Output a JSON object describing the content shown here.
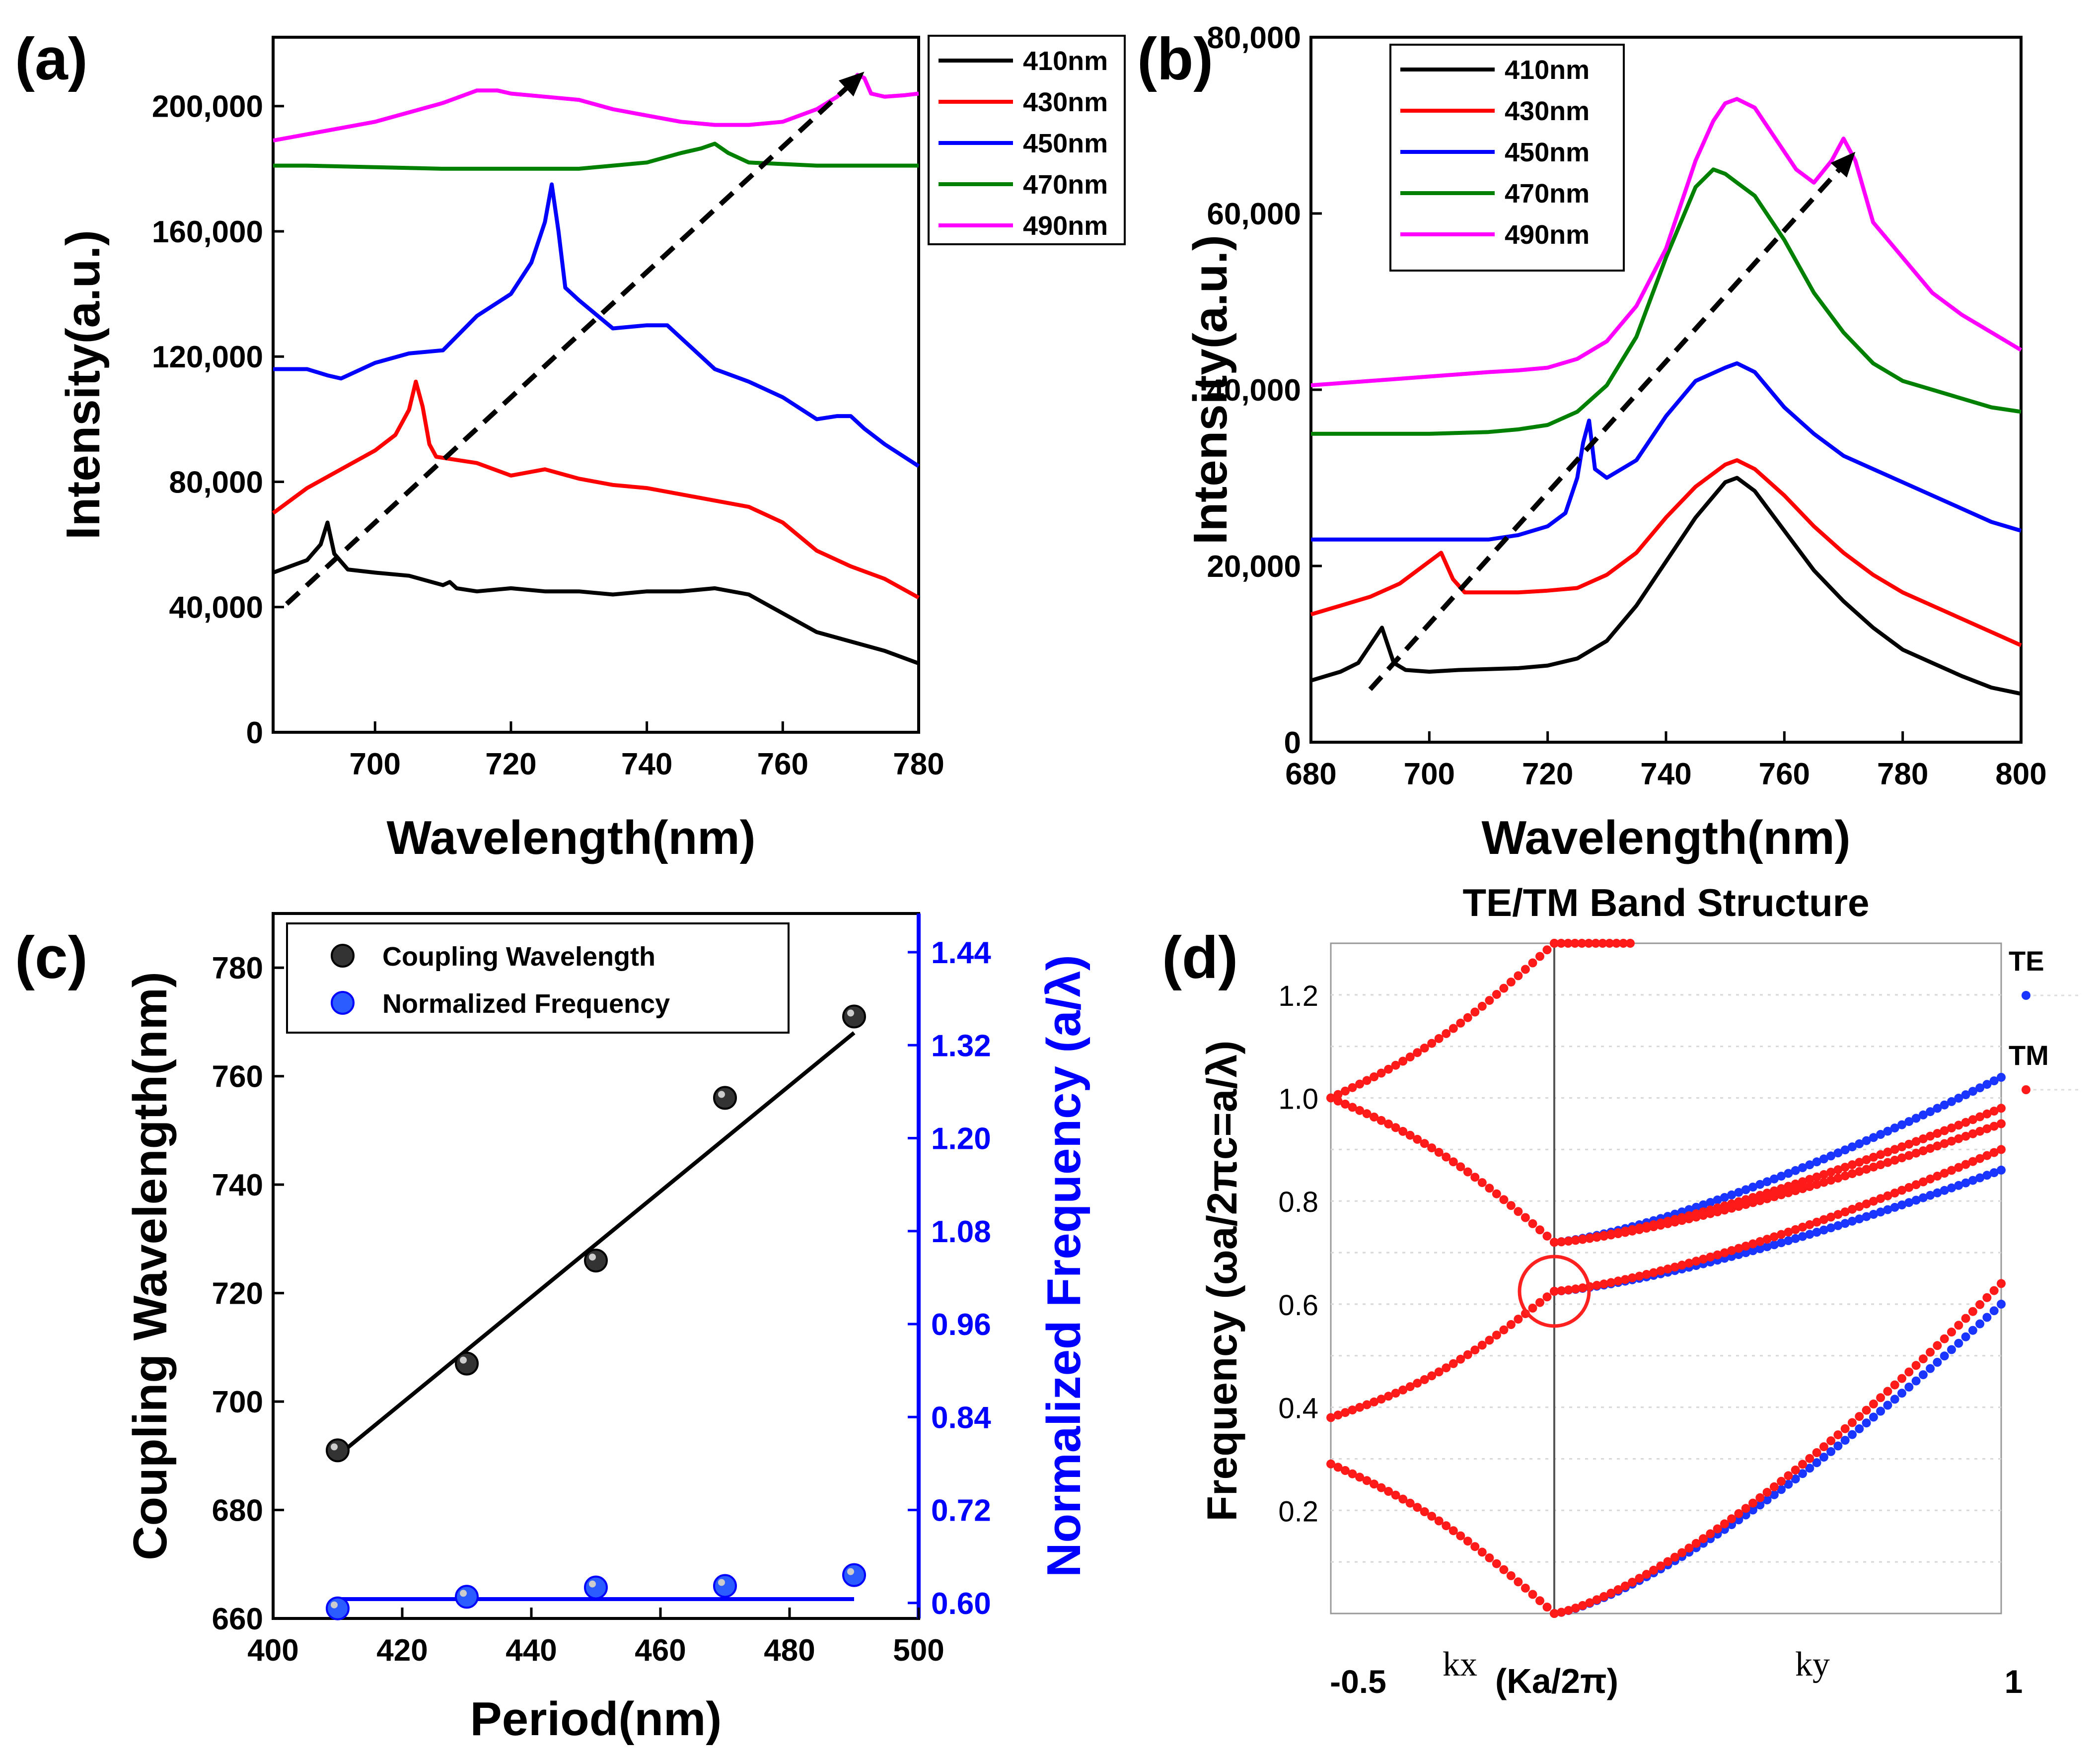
{
  "chart_data": [
    {
      "panel": "(a)",
      "type": "line",
      "title": "",
      "xlabel": "Wavelength(nm)",
      "ylabel": "Intensity(a.u.)",
      "xlim": [
        685,
        780
      ],
      "ylim": [
        0,
        222000
      ],
      "xticks": [
        700,
        720,
        740,
        760,
        780
      ],
      "xtick_labels": [
        "700",
        "720",
        "740",
        "760",
        "780"
      ],
      "yticks": [
        0,
        40000,
        80000,
        120000,
        160000,
        200000
      ],
      "ytick_labels": [
        "0",
        "40,000",
        "80,000",
        "120,000",
        "160,000",
        "200,000"
      ],
      "legend": "top-right",
      "arrow": {
        "from": [
          687,
          41000
        ],
        "to": [
          772,
          211000
        ]
      },
      "series": [
        {
          "name": "410nm",
          "color": "#000000",
          "x": [
            685,
            690,
            692,
            693,
            694,
            696,
            700,
            705,
            710,
            711,
            712,
            715,
            720,
            725,
            730,
            735,
            740,
            745,
            750,
            755,
            760,
            765,
            770,
            775,
            780
          ],
          "y": [
            51000,
            55000,
            60000,
            67000,
            57000,
            52000,
            51000,
            50000,
            47000,
            48000,
            46000,
            45000,
            46000,
            45000,
            45000,
            44000,
            45000,
            45000,
            46000,
            44000,
            38000,
            32000,
            29000,
            26000,
            22000
          ]
        },
        {
          "name": "430nm",
          "color": "#ff0000",
          "x": [
            685,
            690,
            695,
            700,
            703,
            705,
            706,
            707,
            708,
            709,
            712,
            715,
            720,
            725,
            730,
            735,
            740,
            745,
            750,
            755,
            760,
            765,
            770,
            775,
            780
          ],
          "y": [
            70000,
            78000,
            84000,
            90000,
            95000,
            103000,
            112000,
            104000,
            92000,
            88000,
            87000,
            86000,
            82000,
            84000,
            81000,
            79000,
            78000,
            76000,
            74000,
            72000,
            67000,
            58000,
            53000,
            49000,
            43000
          ]
        },
        {
          "name": "450nm",
          "color": "#0000ff",
          "x": [
            685,
            690,
            693,
            695,
            700,
            705,
            710,
            715,
            720,
            723,
            725,
            726,
            727,
            728,
            730,
            735,
            740,
            743,
            745,
            750,
            755,
            760,
            765,
            768,
            770,
            772,
            775,
            780
          ],
          "y": [
            116000,
            116000,
            114000,
            113000,
            118000,
            121000,
            122000,
            133000,
            140000,
            150000,
            163000,
            175000,
            160000,
            142000,
            138000,
            129000,
            130000,
            130000,
            126000,
            116000,
            112000,
            107000,
            100000,
            101000,
            101000,
            97000,
            92000,
            85000
          ]
        },
        {
          "name": "470nm",
          "color": "#008000",
          "x": [
            685,
            690,
            700,
            710,
            720,
            730,
            735,
            740,
            745,
            748,
            750,
            752,
            755,
            760,
            765,
            770,
            775,
            780
          ],
          "y": [
            181000,
            181000,
            180500,
            180000,
            180000,
            180000,
            181000,
            182000,
            185000,
            186500,
            188000,
            185000,
            182000,
            181500,
            181000,
            181000,
            181000,
            181000
          ]
        },
        {
          "name": "490nm",
          "color": "#ff00ff",
          "x": [
            685,
            690,
            695,
            700,
            705,
            710,
            715,
            718,
            720,
            725,
            730,
            735,
            740,
            745,
            750,
            755,
            760,
            765,
            768,
            770,
            771,
            772,
            773,
            775,
            778,
            780
          ],
          "y": [
            189000,
            191000,
            193000,
            195000,
            198000,
            201000,
            205000,
            205000,
            204000,
            203000,
            202000,
            199000,
            197000,
            195000,
            194000,
            194000,
            195000,
            199000,
            203000,
            207000,
            210000,
            209000,
            204000,
            203000,
            203500,
            204000
          ]
        }
      ]
    },
    {
      "panel": "(b)",
      "type": "line",
      "title": "",
      "xlabel": "Wavelength(nm)",
      "ylabel": "Intensity(a.u.)",
      "xlim": [
        680,
        800
      ],
      "ylim": [
        0,
        80000
      ],
      "xticks": [
        680,
        700,
        720,
        740,
        760,
        780,
        800
      ],
      "xtick_labels": [
        "680",
        "700",
        "720",
        "740",
        "760",
        "780",
        "800"
      ],
      "yticks": [
        0,
        20000,
        40000,
        60000,
        80000
      ],
      "ytick_labels": [
        "0",
        "20,000",
        "40,000",
        "60,000",
        "80,000"
      ],
      "legend": "top-left",
      "arrow": {
        "from": [
          690,
          6000
        ],
        "to": [
          772,
          67000
        ]
      },
      "series": [
        {
          "name": "410nm",
          "color": "#000000",
          "x": [
            680,
            685,
            688,
            690,
            692,
            693,
            694,
            696,
            700,
            705,
            710,
            715,
            720,
            725,
            730,
            735,
            740,
            745,
            750,
            752,
            755,
            760,
            765,
            770,
            775,
            780,
            785,
            790,
            795,
            800
          ],
          "y": [
            7000,
            8000,
            9000,
            11000,
            13000,
            11000,
            9000,
            8200,
            8000,
            8200,
            8300,
            8400,
            8700,
            9500,
            11500,
            15500,
            20500,
            25500,
            29500,
            30000,
            28500,
            24000,
            19500,
            16000,
            13000,
            10500,
            9000,
            7500,
            6200,
            5500
          ]
        },
        {
          "name": "430nm",
          "color": "#ff0000",
          "x": [
            680,
            685,
            690,
            695,
            700,
            702,
            704,
            706,
            710,
            715,
            720,
            725,
            730,
            735,
            740,
            745,
            750,
            752,
            755,
            760,
            765,
            770,
            775,
            780,
            785,
            790,
            795,
            800
          ],
          "y": [
            14500,
            15500,
            16500,
            18000,
            20500,
            21500,
            18500,
            17000,
            17000,
            17000,
            17200,
            17500,
            19000,
            21500,
            25500,
            29000,
            31500,
            32000,
            31000,
            28000,
            24500,
            21500,
            19000,
            17000,
            15500,
            14000,
            12500,
            11000
          ]
        },
        {
          "name": "450nm",
          "color": "#0000ff",
          "x": [
            680,
            685,
            690,
            695,
            700,
            705,
            710,
            715,
            720,
            723,
            725,
            726,
            727,
            728,
            730,
            735,
            740,
            745,
            750,
            752,
            755,
            760,
            765,
            770,
            775,
            780,
            785,
            790,
            795,
            800
          ],
          "y": [
            23000,
            23000,
            23000,
            23000,
            23000,
            23000,
            23000,
            23500,
            24500,
            26000,
            30000,
            34000,
            36500,
            31000,
            30000,
            32000,
            37000,
            41000,
            42500,
            43000,
            42000,
            38000,
            35000,
            32500,
            31000,
            29500,
            28000,
            26500,
            25000,
            24000
          ]
        },
        {
          "name": "470nm",
          "color": "#008000",
          "x": [
            680,
            690,
            700,
            710,
            715,
            720,
            725,
            730,
            735,
            740,
            745,
            748,
            750,
            752,
            755,
            760,
            765,
            770,
            775,
            780,
            785,
            790,
            795,
            800
          ],
          "y": [
            35000,
            35000,
            35000,
            35200,
            35500,
            36000,
            37500,
            40500,
            46000,
            55000,
            63000,
            65000,
            64500,
            63500,
            62000,
            57000,
            51000,
            46500,
            43000,
            41000,
            40000,
            39000,
            38000,
            37500
          ]
        },
        {
          "name": "490nm",
          "color": "#ff00ff",
          "x": [
            680,
            690,
            700,
            710,
            715,
            720,
            725,
            730,
            735,
            740,
            745,
            748,
            750,
            752,
            755,
            758,
            762,
            765,
            768,
            770,
            772,
            775,
            780,
            785,
            790,
            795,
            800
          ],
          "y": [
            40500,
            41000,
            41500,
            42000,
            42200,
            42500,
            43500,
            45500,
            49500,
            56000,
            66000,
            70500,
            72500,
            73000,
            72000,
            69000,
            65000,
            63500,
            66000,
            68500,
            66000,
            59000,
            55000,
            51000,
            48500,
            46500,
            44500
          ]
        }
      ]
    },
    {
      "panel": "(c)",
      "type": "scatter",
      "title": "",
      "xlabel": "Period(nm)",
      "ylabel": "Coupling Wavelength(nm)",
      "y2label": "Normalized Frequency (a/λ)",
      "xlim": [
        400,
        500
      ],
      "ylim": [
        660,
        790
      ],
      "y2lim": [
        0.58,
        1.49
      ],
      "xticks": [
        400,
        420,
        440,
        460,
        480,
        500
      ],
      "xtick_labels": [
        "400",
        "420",
        "440",
        "460",
        "480",
        "500"
      ],
      "yticks": [
        660,
        680,
        700,
        720,
        740,
        760,
        780
      ],
      "ytick_labels": [
        "660",
        "680",
        "700",
        "720",
        "740",
        "760",
        "780"
      ],
      "y2ticks": [
        0.6,
        0.72,
        0.84,
        0.96,
        1.08,
        1.2,
        1.32,
        1.44
      ],
      "y2tick_labels": [
        "0.60",
        "0.72",
        "0.84",
        "0.96",
        "1.08",
        "1.20",
        "1.32",
        "1.44"
      ],
      "legend": "top-left",
      "series": [
        {
          "name": "Coupling Wavelength",
          "axis": "left",
          "color": "#000000",
          "x": [
            410,
            430,
            450,
            470,
            490
          ],
          "y": [
            691,
            707,
            726,
            756,
            771
          ],
          "fit": [
            [
              410,
              690
            ],
            [
              490,
              768
            ]
          ]
        },
        {
          "name": "Normalized Frequency",
          "axis": "right",
          "color": "#0000ff",
          "x": [
            410,
            430,
            450,
            470,
            490
          ],
          "y": [
            0.593,
            0.608,
            0.62,
            0.622,
            0.636
          ],
          "fit": [
            [
              410,
              0.605
            ],
            [
              490,
              0.605
            ]
          ]
        }
      ]
    },
    {
      "panel": "(d)",
      "type": "scatter",
      "title": "TE/TM Band Structure",
      "xlabel": "(Ka/2π)",
      "x_left_label": "-0.5",
      "x_right_label": "1",
      "x_left_region": "kx",
      "x_right_region": "ky",
      "ylabel": "Frequency (ωa/2πc=a/λ)",
      "xlim": [
        -0.5,
        1
      ],
      "ylim": [
        0,
        1.3
      ],
      "yticks": [
        0.2,
        0.4,
        0.6,
        0.8,
        1.0,
        1.2
      ],
      "ytick_labels": [
        "0.2",
        "0.4",
        "0.6",
        "0.8",
        "1.0",
        "1.2"
      ],
      "divider_x": 0,
      "circle_center": [
        0,
        0.625
      ],
      "legend": "right",
      "series": [
        {
          "name": "TE",
          "color": "#1a35ff",
          "bands": [
            {
              "from": [
                0,
                0.72
              ],
              "to": [
                1,
                1.04
              ]
            },
            {
              "from": [
                0,
                0.625
              ],
              "to": [
                1,
                0.86
              ]
            },
            {
              "from": [
                0,
                0
              ],
              "to": [
                1,
                0.6
              ]
            }
          ]
        },
        {
          "name": "TM",
          "color": "#ff1a1a",
          "bands": [
            {
              "from": [
                -0.5,
                1.0
              ],
              "to": [
                0,
                1.3
              ]
            },
            {
              "from": [
                -0.5,
                1.0
              ],
              "to": [
                0,
                0.72
              ]
            },
            {
              "from": [
                -0.5,
                0.38
              ],
              "to": [
                0,
                0.625
              ]
            },
            {
              "from": [
                -0.5,
                0.29
              ],
              "to": [
                0,
                0.0
              ]
            },
            {
              "from": [
                0,
                1.3
              ],
              "to": [
                0.17,
                1.3
              ]
            },
            {
              "from": [
                0,
                0.72
              ],
              "to": [
                1,
                0.98
              ]
            },
            {
              "from": [
                0,
                0.72
              ],
              "to": [
                1,
                0.95
              ]
            },
            {
              "from": [
                0,
                0.625
              ],
              "to": [
                1,
                0.9
              ]
            },
            {
              "from": [
                0,
                0
              ],
              "to": [
                1,
                0.64
              ]
            }
          ]
        }
      ]
    }
  ]
}
